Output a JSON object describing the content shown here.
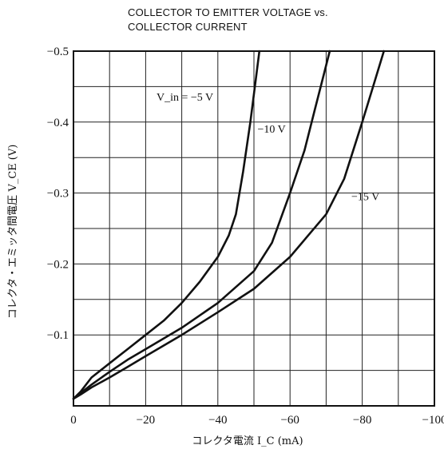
{
  "chart_data": {
    "type": "line",
    "title_lines": [
      "COLLECTOR TO EMITTER VOLTAGE vs.",
      "COLLECTOR CURRENT"
    ],
    "xlabel": "コレクタ電流 I_C (mA)",
    "ylabel": "コレクタ・エミッタ間電圧 V_CE (V)",
    "xlim": [
      0,
      -100
    ],
    "ylim": [
      0,
      -0.5
    ],
    "x_ticks": [
      {
        "value": 0,
        "label": "0"
      },
      {
        "value": -20,
        "label": "−20"
      },
      {
        "value": -40,
        "label": "−40"
      },
      {
        "value": -60,
        "label": "−60"
      },
      {
        "value": -80,
        "label": "−80"
      },
      {
        "value": -100,
        "label": "−100"
      }
    ],
    "y_ticks": [
      {
        "value": -0.1,
        "label": "−0.1"
      },
      {
        "value": -0.2,
        "label": "−0.2"
      },
      {
        "value": -0.3,
        "label": "−0.3"
      },
      {
        "value": -0.4,
        "label": "−0.4"
      },
      {
        "value": -0.5,
        "label": "−0.5"
      }
    ],
    "grid": true,
    "minor_x_step": -10,
    "minor_y_step": -0.05,
    "series": [
      {
        "name": "V_in = −5 V",
        "points": [
          [
            0,
            -0.01
          ],
          [
            -2,
            -0.02
          ],
          [
            -5,
            -0.04
          ],
          [
            -10,
            -0.06
          ],
          [
            -15,
            -0.08
          ],
          [
            -20,
            -0.1
          ],
          [
            -25,
            -0.12
          ],
          [
            -30,
            -0.145
          ],
          [
            -35,
            -0.175
          ],
          [
            -40,
            -0.21
          ],
          [
            -43,
            -0.24
          ],
          [
            -45,
            -0.27
          ],
          [
            -47,
            -0.33
          ],
          [
            -49,
            -0.4
          ],
          [
            -50.5,
            -0.46
          ],
          [
            -51.5,
            -0.5
          ]
        ]
      },
      {
        "name": "−10 V",
        "points": [
          [
            0,
            -0.01
          ],
          [
            -2,
            -0.018
          ],
          [
            -5,
            -0.03
          ],
          [
            -10,
            -0.048
          ],
          [
            -15,
            -0.065
          ],
          [
            -20,
            -0.08
          ],
          [
            -30,
            -0.11
          ],
          [
            -40,
            -0.145
          ],
          [
            -50,
            -0.19
          ],
          [
            -55,
            -0.23
          ],
          [
            -60,
            -0.3
          ],
          [
            -64,
            -0.36
          ],
          [
            -67,
            -0.42
          ],
          [
            -69,
            -0.46
          ],
          [
            -71,
            -0.5
          ]
        ]
      },
      {
        "name": "−15 V",
        "points": [
          [
            0,
            -0.01
          ],
          [
            -2,
            -0.016
          ],
          [
            -5,
            -0.026
          ],
          [
            -10,
            -0.04
          ],
          [
            -15,
            -0.055
          ],
          [
            -20,
            -0.07
          ],
          [
            -30,
            -0.1
          ],
          [
            -40,
            -0.132
          ],
          [
            -50,
            -0.165
          ],
          [
            -60,
            -0.21
          ],
          [
            -70,
            -0.27
          ],
          [
            -75,
            -0.32
          ],
          [
            -80,
            -0.4
          ],
          [
            -83,
            -0.45
          ],
          [
            -86,
            -0.5
          ]
        ]
      }
    ],
    "curve_labels": [
      {
        "text": "V_in = −5 V",
        "near_series": 0
      },
      {
        "text": "−10 V",
        "near_series": 1
      },
      {
        "text": "−15 V",
        "near_series": 2
      }
    ]
  }
}
